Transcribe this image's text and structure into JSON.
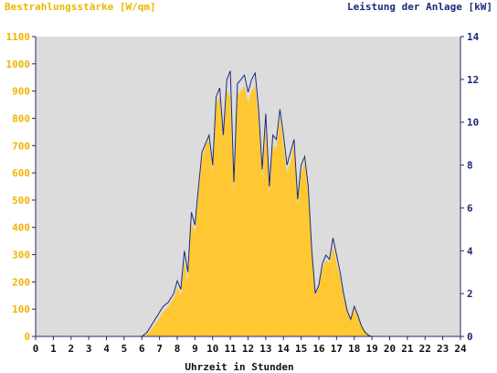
{
  "chart_data": {
    "type": "area",
    "title_left": "Bestrahlungsstärke [W/qm]",
    "title_right": "Leistung der Anlage [kW]",
    "xlabel": "Uhrzeit in Stunden",
    "xlim": [
      0,
      24
    ],
    "x_ticks": [
      "0",
      "1",
      "2",
      "3",
      "4",
      "5",
      "6",
      "7",
      "8",
      "9",
      "10",
      "11",
      "12",
      "13",
      "14",
      "15",
      "16",
      "17",
      "18",
      "19",
      "20",
      "21",
      "22",
      "23",
      "24"
    ],
    "y_left_lim": [
      0,
      1100
    ],
    "y_left_ticks": [
      "0",
      "100",
      "200",
      "300",
      "400",
      "500",
      "600",
      "700",
      "800",
      "900",
      "1000",
      "1100"
    ],
    "y_right_lim": [
      0,
      14
    ],
    "y_right_ticks": [
      "0",
      "2",
      "4",
      "6",
      "8",
      "10",
      "12",
      "14"
    ],
    "grid": false,
    "colors": {
      "plot_background": "#dcdcdc",
      "irradiance_fill": "#ffc832",
      "power_line": "#1a2a7a",
      "left_axis_text": "#f0b400",
      "right_axis_text": "#1a2a7a",
      "xlabel_text": "#111111"
    },
    "series": [
      {
        "name": "Bestrahlungsstärke [W/qm]",
        "axis": "left",
        "x": [
          0,
          6.0,
          6.3,
          6.6,
          6.9,
          7.2,
          7.5,
          7.8,
          8.0,
          8.2,
          8.4,
          8.6,
          8.8,
          9.0,
          9.2,
          9.4,
          9.6,
          9.8,
          10.0,
          10.2,
          10.4,
          10.6,
          10.8,
          11.0,
          11.2,
          11.4,
          11.6,
          11.8,
          12.0,
          12.2,
          12.4,
          12.6,
          12.8,
          13.0,
          13.2,
          13.4,
          13.6,
          13.8,
          14.0,
          14.2,
          14.4,
          14.6,
          14.8,
          15.0,
          15.2,
          15.4,
          15.6,
          15.8,
          16.0,
          16.2,
          16.4,
          16.6,
          16.8,
          17.0,
          17.2,
          17.4,
          17.6,
          17.8,
          18.0,
          18.2,
          18.4,
          18.6,
          18.8,
          19.0,
          24
        ],
        "y": [
          0,
          0,
          10,
          30,
          60,
          90,
          110,
          140,
          180,
          150,
          280,
          200,
          420,
          380,
          520,
          650,
          700,
          720,
          600,
          850,
          880,
          720,
          900,
          880,
          520,
          890,
          900,
          920,
          860,
          900,
          920,
          800,
          580,
          780,
          520,
          700,
          690,
          800,
          700,
          600,
          640,
          700,
          480,
          600,
          640,
          520,
          300,
          150,
          180,
          250,
          280,
          270,
          330,
          270,
          220,
          140,
          90,
          60,
          100,
          80,
          40,
          20,
          5,
          0,
          0
        ]
      },
      {
        "name": "Leistung der Anlage [kW]",
        "axis": "right",
        "x": [
          0,
          6.0,
          6.3,
          6.6,
          6.9,
          7.2,
          7.5,
          7.8,
          8.0,
          8.2,
          8.4,
          8.6,
          8.8,
          9.0,
          9.2,
          9.4,
          9.6,
          9.8,
          10.0,
          10.2,
          10.4,
          10.6,
          10.8,
          11.0,
          11.2,
          11.4,
          11.6,
          11.8,
          12.0,
          12.2,
          12.4,
          12.6,
          12.8,
          13.0,
          13.2,
          13.4,
          13.6,
          13.8,
          14.0,
          14.2,
          14.4,
          14.6,
          14.8,
          15.0,
          15.2,
          15.4,
          15.6,
          15.8,
          16.0,
          16.2,
          16.4,
          16.6,
          16.8,
          17.0,
          17.2,
          17.4,
          17.6,
          17.8,
          18.0,
          18.2,
          18.4,
          18.6,
          18.8,
          19.0,
          24
        ],
        "y": [
          0,
          0,
          0.2,
          0.6,
          1.0,
          1.4,
          1.6,
          2.0,
          2.6,
          2.2,
          4.0,
          3.0,
          5.8,
          5.2,
          7.0,
          8.6,
          9.0,
          9.4,
          8.0,
          11.2,
          11.6,
          9.4,
          12.0,
          12.4,
          7.2,
          11.8,
          12.0,
          12.2,
          11.4,
          12.0,
          12.3,
          10.6,
          7.8,
          10.4,
          7.0,
          9.4,
          9.2,
          10.6,
          9.4,
          8.0,
          8.6,
          9.2,
          6.4,
          8.0,
          8.4,
          7.0,
          4.0,
          2.0,
          2.4,
          3.4,
          3.8,
          3.6,
          4.6,
          3.8,
          3.0,
          2.0,
          1.2,
          0.8,
          1.4,
          1.0,
          0.5,
          0.2,
          0.05,
          0,
          0
        ]
      }
    ]
  }
}
